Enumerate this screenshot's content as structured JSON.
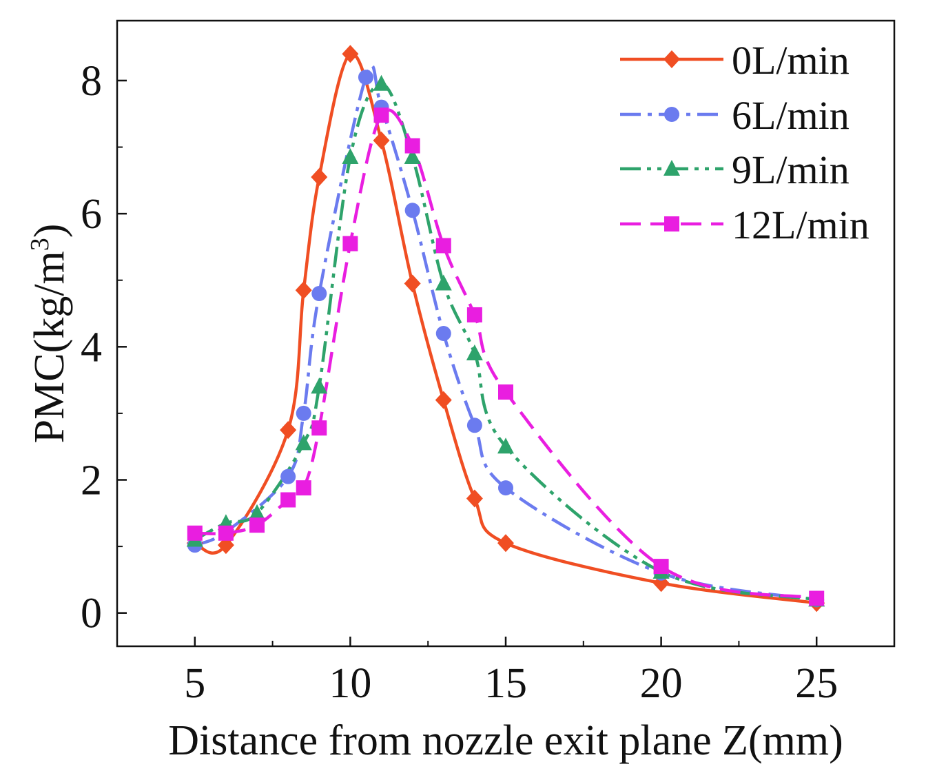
{
  "chart_data": {
    "type": "line",
    "title": "",
    "xlabel": "Distance from nozzle exit plane Z(mm)",
    "ylabel": "PMC(kg/m",
    "ylabel_sup": "3",
    "ylabel_close": ")",
    "xlim": [
      2.5,
      27.5
    ],
    "ylim": [
      -0.5,
      8.9
    ],
    "x_ticks": [
      5,
      10,
      15,
      20,
      25
    ],
    "x_tick_labels": [
      "5",
      "10",
      "15",
      "20",
      "25"
    ],
    "y_ticks": [
      0,
      2,
      4,
      6,
      8
    ],
    "y_tick_labels": [
      "0",
      "2",
      "4",
      "6",
      "8"
    ],
    "grid": false,
    "legend_position": "top-right",
    "series": [
      {
        "name": "0L/min",
        "color": "#f04e23",
        "marker": "diamond",
        "dash": "solid",
        "x": [
          5,
          6,
          8,
          8.5,
          9,
          10,
          11,
          12,
          13,
          14,
          15,
          20,
          25
        ],
        "y": [
          1.05,
          1.02,
          2.75,
          4.85,
          6.55,
          8.4,
          7.1,
          4.95,
          3.2,
          1.72,
          1.05,
          0.45,
          0.15
        ]
      },
      {
        "name": "6L/min",
        "color": "#6b7bef",
        "marker": "circle",
        "dash": "dashdot",
        "x": [
          5,
          6,
          8,
          8.5,
          9,
          10.5,
          11,
          12,
          13,
          14,
          15,
          20,
          25
        ],
        "y": [
          1.02,
          1.22,
          2.05,
          3.0,
          4.8,
          8.05,
          7.6,
          6.05,
          4.2,
          2.82,
          1.88,
          0.6,
          0.2
        ]
      },
      {
        "name": "9L/min",
        "color": "#2ea36b",
        "marker": "triangle",
        "dash": "dashdotdot",
        "x": [
          5,
          6,
          7,
          8.5,
          9,
          10,
          11,
          12,
          13,
          14,
          15,
          20,
          25
        ],
        "y": [
          1.1,
          1.35,
          1.5,
          2.55,
          3.4,
          6.85,
          7.95,
          6.85,
          4.95,
          3.9,
          2.5,
          0.62,
          0.2
        ]
      },
      {
        "name": "12L/min",
        "color": "#e91ee0",
        "marker": "square",
        "dash": "dashed",
        "x": [
          5,
          6,
          7,
          8,
          8.5,
          9,
          10,
          11,
          12,
          13,
          14,
          15,
          20,
          25
        ],
        "y": [
          1.2,
          1.2,
          1.32,
          1.7,
          1.88,
          2.78,
          5.55,
          7.48,
          7.02,
          5.52,
          4.48,
          3.32,
          0.7,
          0.22
        ]
      }
    ]
  }
}
